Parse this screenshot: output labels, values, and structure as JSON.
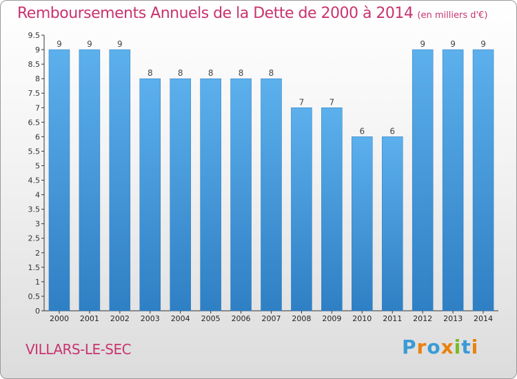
{
  "chart_data": {
    "type": "bar",
    "title": "Remboursements Annuels de la Dette de 2000 à 2014",
    "unit": "(en milliers d'€)",
    "categories": [
      "2000",
      "2001",
      "2002",
      "2003",
      "2004",
      "2005",
      "2006",
      "2007",
      "2008",
      "2009",
      "2010",
      "2011",
      "2012",
      "2013",
      "2014"
    ],
    "values": [
      9,
      9,
      9,
      8,
      8,
      8,
      8,
      8,
      7,
      7,
      6,
      6,
      9,
      9,
      9
    ],
    "ylim": [
      0,
      9.5
    ],
    "yticks": [
      "0",
      "0.5",
      "1",
      "1.5",
      "2",
      "2.5",
      "3",
      "3.5",
      "4",
      "4.5",
      "5",
      "5.5",
      "6",
      "6.5",
      "7",
      "7.5",
      "8",
      "8.5",
      "9",
      "9.5"
    ],
    "xlabel": "",
    "ylabel": "",
    "grid": false,
    "colors": {
      "bar": "#3d8fd6",
      "bar_light": "#5cb0ec",
      "title": "#c8336e"
    }
  },
  "commune": "VILLARS-LE-SEC",
  "logo": {
    "letters": [
      "P",
      "r",
      "o",
      "x",
      "i",
      "t",
      "i"
    ],
    "colors": [
      "#3a9bd5",
      "#e8820c",
      "#3a9bd5",
      "#e8820c",
      "#7ab92a",
      "#3a9bd5",
      "#e8820c"
    ]
  }
}
